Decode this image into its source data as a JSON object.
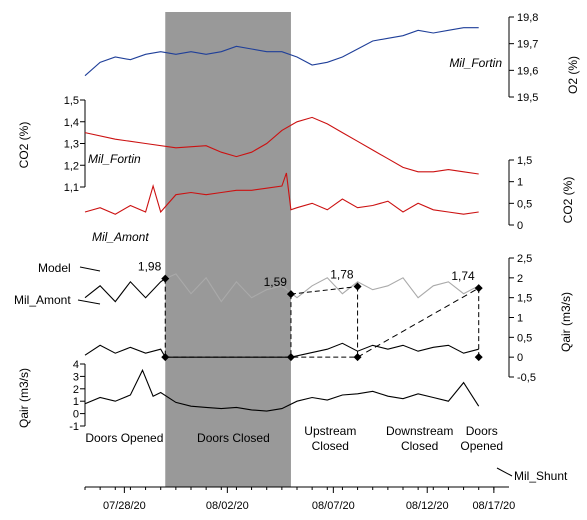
{
  "chart_data": [
    {
      "panel": "O2",
      "type": "line",
      "ylabel": "O2 (%)",
      "ylim": [
        19.5,
        19.8
      ],
      "y_ticks": [
        "19,8",
        "19,7",
        "19,6",
        "19,5"
      ],
      "y_tick_values": [
        19.8,
        19.7,
        19.6,
        19.5
      ],
      "series": [
        {
          "name": "Mil_Fortin",
          "color": "#1f3f99",
          "x": [
            0,
            1,
            2,
            3,
            4,
            5,
            6,
            7,
            8,
            9,
            10,
            11,
            12,
            13,
            14,
            15,
            16,
            17,
            18,
            19,
            20,
            21,
            22,
            23,
            24,
            25,
            26
          ],
          "y": [
            19.58,
            19.63,
            19.65,
            19.64,
            19.66,
            19.67,
            19.66,
            19.67,
            19.66,
            19.67,
            19.69,
            19.68,
            19.67,
            19.67,
            19.65,
            19.62,
            19.63,
            19.65,
            19.68,
            19.71,
            19.72,
            19.73,
            19.75,
            19.74,
            19.75,
            19.76,
            19.76
          ]
        }
      ]
    },
    {
      "panel": "CO2",
      "type": "line",
      "ylabel": "CO2 (%)",
      "ylim": [
        1.1,
        1.5
      ],
      "y_ticks": [
        "1,5",
        "1,4",
        "1,3",
        "1,2",
        "1,1"
      ],
      "y_tick_values": [
        1.5,
        1.4,
        1.3,
        1.2,
        1.1
      ],
      "series": [
        {
          "name": "Mil_Fortin",
          "color": "#cc1111",
          "x": [
            0,
            2,
            4,
            6,
            8,
            9,
            10,
            11,
            12,
            13,
            14,
            15,
            16,
            17,
            18,
            19,
            20,
            21,
            22,
            23,
            24,
            25,
            26
          ],
          "y": [
            1.35,
            1.32,
            1.3,
            1.28,
            1.29,
            1.26,
            1.24,
            1.26,
            1.3,
            1.36,
            1.4,
            1.42,
            1.39,
            1.35,
            1.31,
            1.27,
            1.23,
            1.19,
            1.17,
            1.17,
            1.18,
            1.17,
            1.16
          ]
        }
      ]
    },
    {
      "panel": "CO2_Amont",
      "type": "line",
      "ylabel": "CO2 (%)",
      "ylim": [
        0,
        1.5
      ],
      "y_ticks": [
        "1,5",
        "1",
        "0,5",
        "0"
      ],
      "y_tick_values": [
        1.5,
        1.0,
        0.5,
        0.0
      ],
      "series": [
        {
          "name": "Mil_Amont",
          "color": "#cc1111",
          "x": [
            0,
            1,
            2,
            3,
            4,
            4.5,
            5,
            6,
            7,
            8,
            9,
            10,
            11,
            12,
            13,
            13.3,
            13.6,
            14,
            15,
            16,
            17,
            18,
            19,
            20,
            21,
            22,
            23,
            24,
            25,
            26
          ],
          "y": [
            0.3,
            0.4,
            0.25,
            0.45,
            0.3,
            0.9,
            0.3,
            0.7,
            0.75,
            0.7,
            0.75,
            0.8,
            0.8,
            0.85,
            0.9,
            1.2,
            0.35,
            0.4,
            0.5,
            0.35,
            0.6,
            0.4,
            0.45,
            0.55,
            0.3,
            0.5,
            0.35,
            0.3,
            0.25,
            0.3
          ]
        }
      ]
    },
    {
      "panel": "Qair",
      "type": "line",
      "ylabel": "Qair (m3/s)",
      "ylim": [
        -0.5,
        2.5
      ],
      "y_ticks": [
        "2,5",
        "2",
        "1,5",
        "1",
        "0,5",
        "0",
        "-0,5"
      ],
      "y_tick_values": [
        2.5,
        2.0,
        1.5,
        1.0,
        0.5,
        0.0,
        -0.5
      ],
      "series": [
        {
          "name": "Model",
          "color": "#000000",
          "x": [
            0,
            1,
            2,
            3,
            4,
            5,
            5.3
          ],
          "y": [
            1.5,
            1.8,
            1.4,
            1.9,
            1.5,
            1.9,
            1.98
          ]
        },
        {
          "name": "Model",
          "color": "#aaaaaa",
          "x": [
            5.3,
            6,
            7,
            8,
            9,
            10,
            11,
            12,
            13,
            14,
            15,
            16,
            17,
            18,
            19,
            20,
            21,
            22,
            23,
            24,
            25,
            26
          ],
          "y": [
            1.98,
            2.1,
            1.6,
            2.0,
            1.4,
            1.9,
            1.5,
            1.7,
            1.8,
            1.5,
            1.8,
            2.0,
            1.6,
            1.9,
            1.7,
            1.8,
            2.0,
            1.5,
            1.8,
            1.9,
            1.6,
            1.8
          ]
        },
        {
          "name": "Mil_Amont",
          "color": "#000000",
          "x": [
            0,
            1,
            2,
            3,
            4,
            5,
            5.3,
            13.6,
            16,
            17,
            18,
            19,
            20,
            21,
            22,
            23,
            24,
            25,
            26
          ],
          "y": [
            0.05,
            0.3,
            0.1,
            0.25,
            0.1,
            0.2,
            0.0,
            0.0,
            0.2,
            0.35,
            0.15,
            0.3,
            0.2,
            0.3,
            0.15,
            0.25,
            0.3,
            0.1,
            0.2
          ]
        }
      ],
      "annotations": [
        {
          "text": "Model"
        },
        {
          "text": "Mil_Amont"
        },
        {
          "text": "1,98",
          "x": 5.3,
          "y": 1.98
        },
        {
          "text": "1,59",
          "x": 13.6,
          "y": 1.59
        },
        {
          "text": "1,78",
          "x": 18.0,
          "y": 1.78
        },
        {
          "text": "1,74",
          "x": 26.0,
          "y": 1.74
        }
      ]
    },
    {
      "panel": "Qair_Shunt",
      "type": "line",
      "ylabel": "Qair (m3/s)",
      "ylim": [
        -1,
        4
      ],
      "y_ticks": [
        "4",
        "3",
        "2",
        "1",
        "0",
        "-1"
      ],
      "y_tick_values": [
        4,
        3,
        2,
        1,
        0,
        -1
      ],
      "series": [
        {
          "name": "Mil_Shunt",
          "color": "#000000",
          "x": [
            0,
            1,
            2,
            3,
            3.8,
            4.5,
            5,
            6,
            7,
            8,
            9,
            10,
            11,
            12,
            13,
            14,
            15,
            16,
            17,
            18,
            19,
            20,
            21,
            22,
            23,
            24,
            25,
            26
          ],
          "y": [
            0.8,
            1.3,
            1.0,
            1.5,
            3.5,
            1.4,
            1.7,
            0.9,
            0.6,
            0.5,
            0.4,
            0.5,
            0.3,
            0.2,
            0.4,
            1.0,
            1.3,
            1.1,
            1.5,
            1.6,
            1.8,
            1.4,
            1.2,
            1.6,
            1.3,
            1.0,
            2.5,
            0.6
          ]
        }
      ]
    }
  ],
  "x_axis": {
    "ticks": [
      "07/28/20",
      "08/02/20",
      "08/07/20",
      "08/12/20",
      "08/17/20"
    ],
    "tick_values": [
      2.6,
      9.4,
      16.4,
      22.6,
      27.0
    ]
  },
  "shaded_region": {
    "x_start": 5.3,
    "x_end": 13.6,
    "color": "#999999"
  },
  "periods": [
    {
      "label_lines": [
        "Doors Opened"
      ]
    },
    {
      "label_lines": [
        "Doors Closed"
      ]
    },
    {
      "label_lines": [
        "Upstream",
        "Closed"
      ]
    },
    {
      "label_lines": [
        "Downstream",
        "Closed"
      ]
    },
    {
      "label_lines": [
        "Doors",
        "Opened"
      ]
    }
  ]
}
